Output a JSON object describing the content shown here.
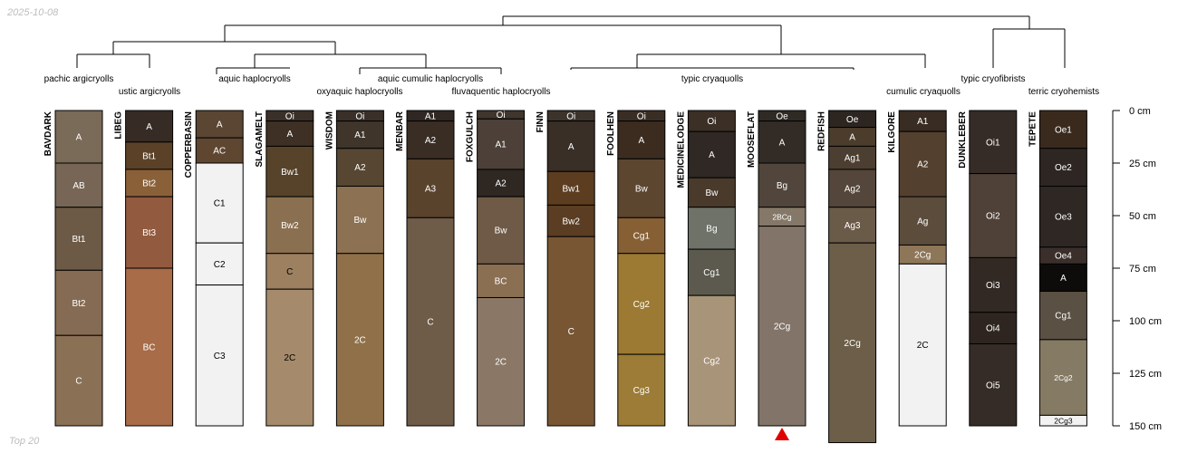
{
  "header": {
    "date": "2025-10-08"
  },
  "footer": {
    "label": "Top 20"
  },
  "taxa": [
    {
      "name": "pachic argicryolls"
    },
    {
      "name": "ustic argicryolls"
    },
    {
      "name": "aquic haplocryolls"
    },
    {
      "name": "oxyaquic haplocryolls"
    },
    {
      "name": "aquic cumulic haplocryolls"
    },
    {
      "name": "fluvaquentic haplocryolls"
    },
    {
      "name": "typic cryaquolls"
    },
    {
      "name": "cumulic cryaquolls"
    },
    {
      "name": "typic cryofibrists"
    },
    {
      "name": "terric cryohemists"
    }
  ],
  "depth_axis": {
    "unit": "cm",
    "max": 150,
    "ticks": [
      {
        "value": 0,
        "label": "0 cm"
      },
      {
        "value": 25,
        "label": "25 cm"
      },
      {
        "value": 50,
        "label": "50 cm"
      },
      {
        "value": 75,
        "label": "75 cm"
      },
      {
        "value": 100,
        "label": "100 cm"
      },
      {
        "value": 125,
        "label": "125 cm"
      },
      {
        "value": 150,
        "label": "150 cm"
      }
    ]
  },
  "profiles": [
    {
      "name": "BAVDARK",
      "horizons": [
        {
          "name": "A",
          "top": 0,
          "bottom": 25,
          "color": "#7a6a58",
          "text": "#ffffff"
        },
        {
          "name": "AB",
          "top": 25,
          "bottom": 46,
          "color": "#776655",
          "text": "#ffffff"
        },
        {
          "name": "Bt1",
          "top": 46,
          "bottom": 76,
          "color": "#6c5a46",
          "text": "#ffffff"
        },
        {
          "name": "Bt2",
          "top": 76,
          "bottom": 107,
          "color": "#856b53",
          "text": "#ffffff"
        },
        {
          "name": "C",
          "top": 107,
          "bottom": 150,
          "color": "#8a7055",
          "text": "#ffffff"
        }
      ]
    },
    {
      "name": "LIBEG",
      "horizons": [
        {
          "name": "A",
          "top": 0,
          "bottom": 15,
          "color": "#362c25",
          "text": "#ffffff"
        },
        {
          "name": "Bt1",
          "top": 15,
          "bottom": 28,
          "color": "#5a4128",
          "text": "#ffffff"
        },
        {
          "name": "Bt2",
          "top": 28,
          "bottom": 41,
          "color": "#8a6038",
          "text": "#ffffff"
        },
        {
          "name": "Bt3",
          "top": 41,
          "bottom": 75,
          "color": "#925a3e",
          "text": "#ffffff"
        },
        {
          "name": "BC",
          "top": 75,
          "bottom": 150,
          "color": "#a86c48",
          "text": "#ffffff"
        }
      ]
    },
    {
      "name": "COPPERBASIN",
      "horizons": [
        {
          "name": "A",
          "top": 0,
          "bottom": 13,
          "color": "#5a4632",
          "text": "#ffffff"
        },
        {
          "name": "AC",
          "top": 13,
          "bottom": 25,
          "color": "#5e4630",
          "text": "#ffffff"
        },
        {
          "name": "C1",
          "top": 25,
          "bottom": 63,
          "color": "#f2f2f2",
          "text": "#000000"
        },
        {
          "name": "C2",
          "top": 63,
          "bottom": 83,
          "color": "#f2f2f2",
          "text": "#000000"
        },
        {
          "name": "C3",
          "top": 83,
          "bottom": 150,
          "color": "#f2f2f2",
          "text": "#000000"
        }
      ]
    },
    {
      "name": "SLAGAMELT",
      "horizons": [
        {
          "name": "Oi",
          "top": 0,
          "bottom": 5,
          "color": "#3a3028",
          "text": "#ffffff"
        },
        {
          "name": "A",
          "top": 5,
          "bottom": 17,
          "color": "#3e3024",
          "text": "#ffffff"
        },
        {
          "name": "Bw1",
          "top": 17,
          "bottom": 41,
          "color": "#574329",
          "text": "#ffffff"
        },
        {
          "name": "Bw2",
          "top": 41,
          "bottom": 68,
          "color": "#8a7050",
          "text": "#ffffff"
        },
        {
          "name": "C",
          "top": 68,
          "bottom": 85,
          "color": "#9c8060",
          "text": "#000000"
        },
        {
          "name": "2C",
          "top": 85,
          "bottom": 150,
          "color": "#a58b6c",
          "text": "#000000"
        }
      ]
    },
    {
      "name": "WISDOM",
      "horizons": [
        {
          "name": "Oi",
          "top": 0,
          "bottom": 5,
          "color": "#3a3029",
          "text": "#ffffff"
        },
        {
          "name": "A1",
          "top": 5,
          "bottom": 18,
          "color": "#3f352b",
          "text": "#ffffff"
        },
        {
          "name": "A2",
          "top": 18,
          "bottom": 36,
          "color": "#564632",
          "text": "#ffffff"
        },
        {
          "name": "Bw",
          "top": 36,
          "bottom": 68,
          "color": "#8c7252",
          "text": "#ffffff"
        },
        {
          "name": "2C",
          "top": 68,
          "bottom": 150,
          "color": "#8f7048",
          "text": "#ffffff"
        }
      ]
    },
    {
      "name": "MENBAR",
      "horizons": [
        {
          "name": "A1",
          "top": 0,
          "bottom": 5,
          "color": "#302722",
          "text": "#ffffff"
        },
        {
          "name": "A2",
          "top": 5,
          "bottom": 23,
          "color": "#3a2d24",
          "text": "#ffffff"
        },
        {
          "name": "A3",
          "top": 23,
          "bottom": 51,
          "color": "#59432c",
          "text": "#ffffff"
        },
        {
          "name": "C",
          "top": 51,
          "bottom": 150,
          "color": "#6e5b48",
          "text": "#ffffff"
        }
      ]
    },
    {
      "name": "FOXGULCH",
      "horizons": [
        {
          "name": "Oi",
          "top": 0,
          "bottom": 4,
          "color": "#40362d",
          "text": "#ffffff"
        },
        {
          "name": "A1",
          "top": 4,
          "bottom": 28,
          "color": "#4c4038",
          "text": "#ffffff"
        },
        {
          "name": "A2",
          "top": 28,
          "bottom": 41,
          "color": "#2e2722",
          "text": "#ffffff"
        },
        {
          "name": "Bw",
          "top": 41,
          "bottom": 73,
          "color": "#6e5a46",
          "text": "#ffffff"
        },
        {
          "name": "BC",
          "top": 73,
          "bottom": 89,
          "color": "#8a6f52",
          "text": "#ffffff"
        },
        {
          "name": "2C",
          "top": 89,
          "bottom": 150,
          "color": "#8b7766",
          "text": "#ffffff"
        }
      ]
    },
    {
      "name": "FINN",
      "horizons": [
        {
          "name": "Oi",
          "top": 0,
          "bottom": 5,
          "color": "#3c342c",
          "text": "#ffffff"
        },
        {
          "name": "A",
          "top": 5,
          "bottom": 29,
          "color": "#3a2f27",
          "text": "#ffffff"
        },
        {
          "name": "Bw1",
          "top": 29,
          "bottom": 45,
          "color": "#5c3d20",
          "text": "#ffffff"
        },
        {
          "name": "Bw2",
          "top": 45,
          "bottom": 60,
          "color": "#5a3d22",
          "text": "#ffffff"
        },
        {
          "name": "C",
          "top": 60,
          "bottom": 150,
          "color": "#785634",
          "text": "#ffffff"
        }
      ]
    },
    {
      "name": "FOOLHEN",
      "horizons": [
        {
          "name": "Oi",
          "top": 0,
          "bottom": 5,
          "color": "#3a2e24",
          "text": "#ffffff"
        },
        {
          "name": "A",
          "top": 5,
          "bottom": 23,
          "color": "#3c2c20",
          "text": "#ffffff"
        },
        {
          "name": "Bw",
          "top": 23,
          "bottom": 51,
          "color": "#5c4630",
          "text": "#ffffff"
        },
        {
          "name": "Cg1",
          "top": 51,
          "bottom": 68,
          "color": "#866034",
          "text": "#ffffff"
        },
        {
          "name": "Cg2",
          "top": 68,
          "bottom": 116,
          "color": "#9c7a34",
          "text": "#ffffff"
        },
        {
          "name": "Cg3",
          "top": 116,
          "bottom": 150,
          "color": "#9c7c36",
          "text": "#ffffff"
        }
      ]
    },
    {
      "name": "MEDICINELODGE",
      "horizons": [
        {
          "name": "Oi",
          "top": 0,
          "bottom": 10,
          "color": "#3c2f26",
          "text": "#ffffff"
        },
        {
          "name": "A",
          "top": 10,
          "bottom": 32,
          "color": "#2f2824",
          "text": "#ffffff"
        },
        {
          "name": "Bw",
          "top": 32,
          "bottom": 46,
          "color": "#4a3a2c",
          "text": "#ffffff"
        },
        {
          "name": "Bg",
          "top": 46,
          "bottom": 66,
          "color": "#6e7268",
          "text": "#ffffff"
        },
        {
          "name": "Cg1",
          "top": 66,
          "bottom": 88,
          "color": "#5c5a4e",
          "text": "#ffffff"
        },
        {
          "name": "Cg2",
          "top": 88,
          "bottom": 150,
          "color": "#a89478",
          "text": "#ffffff"
        }
      ]
    },
    {
      "name": "MOOSEFLAT",
      "horizons": [
        {
          "name": "Oe",
          "top": 0,
          "bottom": 5,
          "color": "#302a24",
          "text": "#ffffff"
        },
        {
          "name": "A",
          "top": 5,
          "bottom": 25,
          "color": "#332c26",
          "text": "#ffffff"
        },
        {
          "name": "Bg",
          "top": 25,
          "bottom": 46,
          "color": "#52463c",
          "text": "#ffffff"
        },
        {
          "name": "2BCg",
          "top": 46,
          "bottom": 55,
          "color": "#857868",
          "text": "#ffffff"
        },
        {
          "name": "2Cg",
          "top": 55,
          "bottom": 150,
          "color": "#827468",
          "text": "#ffffff"
        }
      ]
    },
    {
      "name": "REDFISH",
      "horizons": [
        {
          "name": "Oe",
          "top": 0,
          "bottom": 8,
          "color": "#2d2620",
          "text": "#ffffff"
        },
        {
          "name": "A",
          "top": 8,
          "bottom": 17,
          "color": "#4c3c2c",
          "text": "#ffffff"
        },
        {
          "name": "Ag1",
          "top": 17,
          "bottom": 28,
          "color": "#4c3e30",
          "text": "#ffffff"
        },
        {
          "name": "Ag2",
          "top": 28,
          "bottom": 46,
          "color": "#54463a",
          "text": "#ffffff"
        },
        {
          "name": "Ag3",
          "top": 46,
          "bottom": 63,
          "color": "#6a5a48",
          "text": "#ffffff"
        },
        {
          "name": "2Cg",
          "top": 63,
          "bottom": 158,
          "color": "#6c5e48",
          "text": "#ffffff"
        }
      ]
    },
    {
      "name": "KILGORE",
      "horizons": [
        {
          "name": "A1",
          "top": 0,
          "bottom": 10,
          "color": "#392c22",
          "text": "#ffffff"
        },
        {
          "name": "A2",
          "top": 10,
          "bottom": 41,
          "color": "#54402e",
          "text": "#ffffff"
        },
        {
          "name": "Ag",
          "top": 41,
          "bottom": 64,
          "color": "#5c4c3c",
          "text": "#ffffff"
        },
        {
          "name": "2Cg",
          "top": 64,
          "bottom": 73,
          "color": "#8e7658",
          "text": "#ffffff"
        },
        {
          "name": "2C",
          "top": 73,
          "bottom": 150,
          "color": "#f2f2f2",
          "text": "#000000"
        }
      ]
    },
    {
      "name": "DUNKLEBER",
      "horizons": [
        {
          "name": "Oi1",
          "top": 0,
          "bottom": 30,
          "color": "#362c27",
          "text": "#ffffff"
        },
        {
          "name": "Oi2",
          "top": 30,
          "bottom": 70,
          "color": "#4f4138",
          "text": "#ffffff"
        },
        {
          "name": "Oi3",
          "top": 70,
          "bottom": 96,
          "color": "#322924",
          "text": "#ffffff"
        },
        {
          "name": "Oi4",
          "top": 96,
          "bottom": 111,
          "color": "#2e2520",
          "text": "#ffffff"
        },
        {
          "name": "Oi5",
          "top": 111,
          "bottom": 150,
          "color": "#362c27",
          "text": "#ffffff"
        }
      ]
    },
    {
      "name": "TEPETE",
      "horizons": [
        {
          "name": "Oe1",
          "top": 0,
          "bottom": 18,
          "color": "#3a2a1e",
          "text": "#ffffff"
        },
        {
          "name": "Oe2",
          "top": 18,
          "bottom": 36,
          "color": "#2e2622",
          "text": "#ffffff"
        },
        {
          "name": "Oe3",
          "top": 36,
          "bottom": 65,
          "color": "#2e2724",
          "text": "#ffffff"
        },
        {
          "name": "Oe4",
          "top": 65,
          "bottom": 73,
          "color": "#3a2f2a",
          "text": "#ffffff"
        },
        {
          "name": "A",
          "top": 73,
          "bottom": 86,
          "color": "#0e0c0a",
          "text": "#ffffff"
        },
        {
          "name": "Cg1",
          "top": 86,
          "bottom": 109,
          "color": "#5a5044",
          "text": "#ffffff"
        },
        {
          "name": "2Cg2",
          "top": 109,
          "bottom": 145,
          "color": "#857a64",
          "text": "#ffffff"
        },
        {
          "name": "2Cg3",
          "top": 145,
          "bottom": 150,
          "color": "#f2f2f2",
          "text": "#000000"
        }
      ]
    }
  ],
  "markers": [
    {
      "profile": "MOOSEFLAT",
      "type": "depth-triangle",
      "color": "#e00000"
    }
  ]
}
